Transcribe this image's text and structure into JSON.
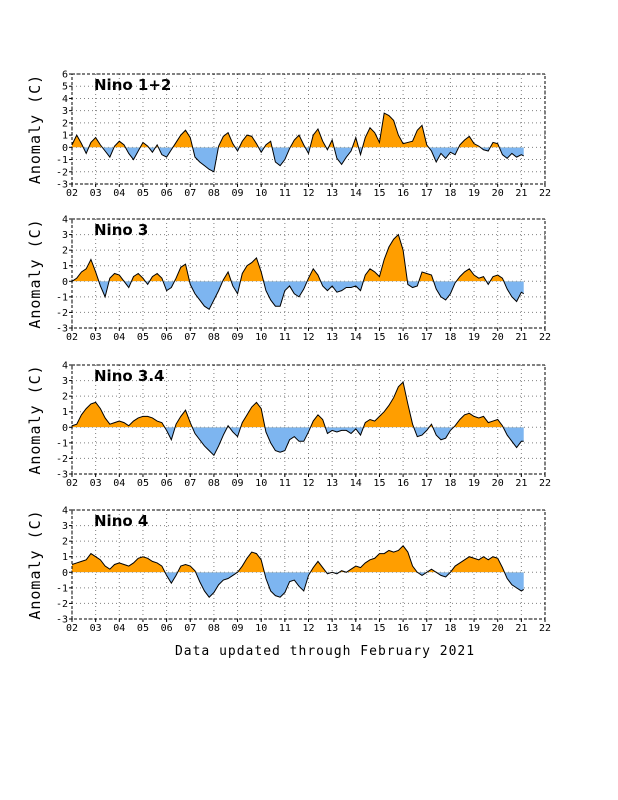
{
  "footer": "Data updated through February 2021",
  "colors": {
    "positive": "#ff9e00",
    "negative": "#7db5f0",
    "line": "#000000",
    "grid": "#808080"
  },
  "chart_data": [
    {
      "type": "area",
      "title": "Nino 1+2",
      "ylabel": "Anomaly (C)",
      "ylim": [
        -3,
        6
      ],
      "yticks": [
        -3,
        -2,
        -1,
        0,
        1,
        2,
        3,
        4,
        5,
        6
      ],
      "xticks": [
        "02",
        "03",
        "04",
        "05",
        "06",
        "07",
        "08",
        "09",
        "10",
        "11",
        "12",
        "13",
        "14",
        "15",
        "16",
        "17",
        "18",
        "19",
        "20",
        "21",
        "22"
      ],
      "grid": true,
      "series": [
        {
          "x": [
            2.0,
            2.2,
            2.4,
            2.6,
            2.8,
            3.0,
            3.2,
            3.4,
            3.6,
            3.8,
            4.0,
            4.2,
            4.4,
            4.6,
            4.8,
            5.0,
            5.2,
            5.4,
            5.6,
            5.8,
            6.0,
            6.2,
            6.4,
            6.6,
            6.8,
            7.0,
            7.2,
            7.4,
            7.6,
            7.8,
            8.0,
            8.2,
            8.4,
            8.6,
            8.8,
            9.0,
            9.2,
            9.4,
            9.6,
            9.8,
            10.0,
            10.2,
            10.4,
            10.6,
            10.8,
            11.0,
            11.2,
            11.4,
            11.6,
            11.8,
            12.0,
            12.2,
            12.4,
            12.6,
            12.8,
            13.0,
            13.2,
            13.4,
            13.6,
            13.8,
            14.0,
            14.2,
            14.4,
            14.6,
            14.8,
            15.0,
            15.2,
            15.4,
            15.6,
            15.8,
            16.0,
            16.2,
            16.4,
            16.6,
            16.8,
            17.0,
            17.2,
            17.4,
            17.6,
            17.8,
            18.0,
            18.2,
            18.4,
            18.6,
            18.8,
            19.0,
            19.2,
            19.4,
            19.6,
            19.8,
            20.0,
            20.2,
            20.4,
            20.6,
            20.8,
            21.0,
            21.1
          ],
          "y": [
            0.2,
            1.0,
            0.3,
            -0.5,
            0.4,
            0.8,
            0.2,
            -0.3,
            -0.8,
            0.1,
            0.5,
            0.2,
            -0.5,
            -1.0,
            -0.3,
            0.4,
            0.1,
            -0.4,
            0.2,
            -0.6,
            -0.8,
            -0.2,
            0.4,
            1.0,
            1.4,
            0.8,
            -0.8,
            -1.2,
            -1.5,
            -1.8,
            -2.0,
            0.1,
            0.9,
            1.2,
            0.3,
            -0.3,
            0.5,
            1.0,
            0.9,
            0.3,
            -0.4,
            0.2,
            0.5,
            -1.2,
            -1.5,
            -1.0,
            -0.1,
            0.6,
            1.0,
            0.2,
            -0.5,
            1.0,
            1.5,
            0.5,
            -0.2,
            0.6,
            -0.9,
            -1.4,
            -0.8,
            -0.3,
            0.8,
            -0.6,
            0.8,
            1.6,
            1.2,
            0.4,
            2.8,
            2.6,
            2.2,
            1.0,
            0.3,
            0.4,
            0.5,
            1.4,
            1.8,
            0.2,
            -0.3,
            -1.2,
            -0.5,
            -0.9,
            -0.4,
            -0.6,
            0.2,
            0.6,
            0.9,
            0.3,
            0.1,
            -0.2,
            -0.3,
            0.4,
            0.3,
            -0.6,
            -0.9,
            -0.5,
            -0.8,
            -0.6,
            -0.7
          ]
        }
      ]
    },
    {
      "type": "area",
      "title": "Nino 3",
      "ylabel": "Anomaly (C)",
      "ylim": [
        -3,
        4
      ],
      "yticks": [
        -3,
        -2,
        -1,
        0,
        1,
        2,
        3,
        4
      ],
      "xticks": [
        "02",
        "03",
        "04",
        "05",
        "06",
        "07",
        "08",
        "09",
        "10",
        "11",
        "12",
        "13",
        "14",
        "15",
        "16",
        "17",
        "18",
        "19",
        "20",
        "21",
        "22"
      ],
      "grid": true,
      "series": [
        {
          "x": [
            2.0,
            2.2,
            2.4,
            2.6,
            2.8,
            3.0,
            3.2,
            3.4,
            3.6,
            3.8,
            4.0,
            4.2,
            4.4,
            4.6,
            4.8,
            5.0,
            5.2,
            5.4,
            5.6,
            5.8,
            6.0,
            6.2,
            6.4,
            6.6,
            6.8,
            7.0,
            7.2,
            7.4,
            7.6,
            7.8,
            8.0,
            8.2,
            8.4,
            8.6,
            8.8,
            9.0,
            9.2,
            9.4,
            9.6,
            9.8,
            10.0,
            10.2,
            10.4,
            10.6,
            10.8,
            11.0,
            11.2,
            11.4,
            11.6,
            11.8,
            12.0,
            12.2,
            12.4,
            12.6,
            12.8,
            13.0,
            13.2,
            13.4,
            13.6,
            13.8,
            14.0,
            14.2,
            14.4,
            14.6,
            14.8,
            15.0,
            15.2,
            15.4,
            15.6,
            15.8,
            16.0,
            16.2,
            16.4,
            16.6,
            16.8,
            17.0,
            17.2,
            17.4,
            17.6,
            17.8,
            18.0,
            18.2,
            18.4,
            18.6,
            18.8,
            19.0,
            19.2,
            19.4,
            19.6,
            19.8,
            20.0,
            20.2,
            20.4,
            20.6,
            20.8,
            21.0,
            21.1
          ],
          "y": [
            0.0,
            0.2,
            0.6,
            0.8,
            1.4,
            0.6,
            -0.3,
            -1.0,
            0.2,
            0.5,
            0.4,
            0.0,
            -0.4,
            0.3,
            0.5,
            0.2,
            -0.2,
            0.3,
            0.5,
            0.2,
            -0.6,
            -0.4,
            0.2,
            0.9,
            1.1,
            -0.2,
            -0.8,
            -1.2,
            -1.6,
            -1.8,
            -1.2,
            -0.6,
            0.1,
            0.6,
            -0.3,
            -0.8,
            0.5,
            1.0,
            1.2,
            1.5,
            0.6,
            -0.6,
            -1.2,
            -1.6,
            -1.6,
            -0.6,
            -0.3,
            -0.8,
            -1.0,
            -0.5,
            0.2,
            0.8,
            0.4,
            -0.3,
            -0.6,
            -0.3,
            -0.7,
            -0.6,
            -0.4,
            -0.4,
            -0.3,
            -0.6,
            0.4,
            0.8,
            0.6,
            0.3,
            1.4,
            2.2,
            2.7,
            3.0,
            2.0,
            -0.2,
            -0.4,
            -0.3,
            0.6,
            0.5,
            0.4,
            -0.5,
            -1.0,
            -1.2,
            -0.8,
            -0.1,
            0.3,
            0.6,
            0.8,
            0.4,
            0.2,
            0.3,
            -0.2,
            0.3,
            0.4,
            0.2,
            -0.5,
            -1.0,
            -1.3,
            -0.7,
            -0.8
          ]
        }
      ]
    },
    {
      "type": "area",
      "title": "Nino 3.4",
      "ylabel": "Anomaly (C)",
      "ylim": [
        -3,
        4
      ],
      "yticks": [
        -3,
        -2,
        -1,
        0,
        1,
        2,
        3,
        4
      ],
      "xticks": [
        "02",
        "03",
        "04",
        "05",
        "06",
        "07",
        "08",
        "09",
        "10",
        "11",
        "12",
        "13",
        "14",
        "15",
        "16",
        "17",
        "18",
        "19",
        "20",
        "21",
        "22"
      ],
      "grid": true,
      "series": [
        {
          "x": [
            2.0,
            2.2,
            2.4,
            2.6,
            2.8,
            3.0,
            3.2,
            3.4,
            3.6,
            3.8,
            4.0,
            4.2,
            4.4,
            4.6,
            4.8,
            5.0,
            5.2,
            5.4,
            5.6,
            5.8,
            6.0,
            6.2,
            6.4,
            6.6,
            6.8,
            7.0,
            7.2,
            7.4,
            7.6,
            7.8,
            8.0,
            8.2,
            8.4,
            8.6,
            8.8,
            9.0,
            9.2,
            9.4,
            9.6,
            9.8,
            10.0,
            10.2,
            10.4,
            10.6,
            10.8,
            11.0,
            11.2,
            11.4,
            11.6,
            11.8,
            12.0,
            12.2,
            12.4,
            12.6,
            12.8,
            13.0,
            13.2,
            13.4,
            13.6,
            13.8,
            14.0,
            14.2,
            14.4,
            14.6,
            14.8,
            15.0,
            15.2,
            15.4,
            15.6,
            15.8,
            16.0,
            16.2,
            16.4,
            16.6,
            16.8,
            17.0,
            17.2,
            17.4,
            17.6,
            17.8,
            18.0,
            18.2,
            18.4,
            18.6,
            18.8,
            19.0,
            19.2,
            19.4,
            19.6,
            19.8,
            20.0,
            20.2,
            20.4,
            20.6,
            20.8,
            21.0,
            21.1
          ],
          "y": [
            0.1,
            0.2,
            0.8,
            1.2,
            1.5,
            1.6,
            1.2,
            0.6,
            0.2,
            0.3,
            0.4,
            0.3,
            0.1,
            0.4,
            0.6,
            0.7,
            0.7,
            0.6,
            0.4,
            0.3,
            -0.2,
            -0.8,
            0.2,
            0.7,
            1.1,
            0.3,
            -0.4,
            -0.8,
            -1.2,
            -1.5,
            -1.8,
            -1.2,
            -0.5,
            0.1,
            -0.3,
            -0.6,
            0.3,
            0.8,
            1.3,
            1.6,
            1.2,
            -0.3,
            -1.0,
            -1.5,
            -1.6,
            -1.5,
            -0.8,
            -0.6,
            -0.9,
            -0.9,
            -0.3,
            0.4,
            0.8,
            0.5,
            -0.4,
            -0.2,
            -0.3,
            -0.2,
            -0.2,
            -0.4,
            -0.1,
            -0.5,
            0.3,
            0.5,
            0.4,
            0.7,
            1.0,
            1.4,
            1.9,
            2.6,
            2.9,
            1.5,
            0.2,
            -0.6,
            -0.5,
            -0.2,
            0.2,
            -0.5,
            -0.8,
            -0.7,
            -0.2,
            0.1,
            0.5,
            0.8,
            0.9,
            0.7,
            0.6,
            0.7,
            0.3,
            0.4,
            0.5,
            0.1,
            -0.5,
            -0.9,
            -1.3,
            -0.9,
            -0.9
          ]
        }
      ]
    },
    {
      "type": "area",
      "title": "Nino 4",
      "ylabel": "Anomaly (C)",
      "ylim": [
        -3,
        4
      ],
      "yticks": [
        -3,
        -2,
        -1,
        0,
        1,
        2,
        3,
        4
      ],
      "xticks": [
        "02",
        "03",
        "04",
        "05",
        "06",
        "07",
        "08",
        "09",
        "10",
        "11",
        "12",
        "13",
        "14",
        "15",
        "16",
        "17",
        "18",
        "19",
        "20",
        "21",
        "22"
      ],
      "grid": true,
      "series": [
        {
          "x": [
            2.0,
            2.2,
            2.4,
            2.6,
            2.8,
            3.0,
            3.2,
            3.4,
            3.6,
            3.8,
            4.0,
            4.2,
            4.4,
            4.6,
            4.8,
            5.0,
            5.2,
            5.4,
            5.6,
            5.8,
            6.0,
            6.2,
            6.4,
            6.6,
            6.8,
            7.0,
            7.2,
            7.4,
            7.6,
            7.8,
            8.0,
            8.2,
            8.4,
            8.6,
            8.8,
            9.0,
            9.2,
            9.4,
            9.6,
            9.8,
            10.0,
            10.2,
            10.4,
            10.6,
            10.8,
            11.0,
            11.2,
            11.4,
            11.6,
            11.8,
            12.0,
            12.2,
            12.4,
            12.6,
            12.8,
            13.0,
            13.2,
            13.4,
            13.6,
            13.8,
            14.0,
            14.2,
            14.4,
            14.6,
            14.8,
            15.0,
            15.2,
            15.4,
            15.6,
            15.8,
            16.0,
            16.2,
            16.4,
            16.6,
            16.8,
            17.0,
            17.2,
            17.4,
            17.6,
            17.8,
            18.0,
            18.2,
            18.4,
            18.6,
            18.8,
            19.0,
            19.2,
            19.4,
            19.6,
            19.8,
            20.0,
            20.2,
            20.4,
            20.6,
            20.8,
            21.0,
            21.1
          ],
          "y": [
            0.5,
            0.6,
            0.7,
            0.8,
            1.2,
            1.0,
            0.8,
            0.4,
            0.2,
            0.5,
            0.6,
            0.5,
            0.4,
            0.6,
            0.9,
            1.0,
            0.9,
            0.7,
            0.6,
            0.4,
            -0.2,
            -0.7,
            -0.2,
            0.4,
            0.5,
            0.4,
            0.1,
            -0.6,
            -1.2,
            -1.6,
            -1.3,
            -0.8,
            -0.5,
            -0.4,
            -0.2,
            0.0,
            0.4,
            0.9,
            1.3,
            1.2,
            0.8,
            -0.4,
            -1.2,
            -1.5,
            -1.6,
            -1.3,
            -0.6,
            -0.5,
            -0.9,
            -1.2,
            -0.2,
            0.3,
            0.7,
            0.3,
            -0.1,
            0.0,
            -0.1,
            0.1,
            0.0,
            0.2,
            0.4,
            0.3,
            0.6,
            0.8,
            0.9,
            1.2,
            1.2,
            1.4,
            1.3,
            1.4,
            1.7,
            1.3,
            0.4,
            0.0,
            -0.2,
            0.0,
            0.2,
            0.0,
            -0.2,
            -0.3,
            0.0,
            0.4,
            0.6,
            0.8,
            1.0,
            0.9,
            0.8,
            1.0,
            0.8,
            1.0,
            0.9,
            0.3,
            -0.4,
            -0.8,
            -1.0,
            -1.2,
            -1.1
          ]
        }
      ]
    }
  ]
}
